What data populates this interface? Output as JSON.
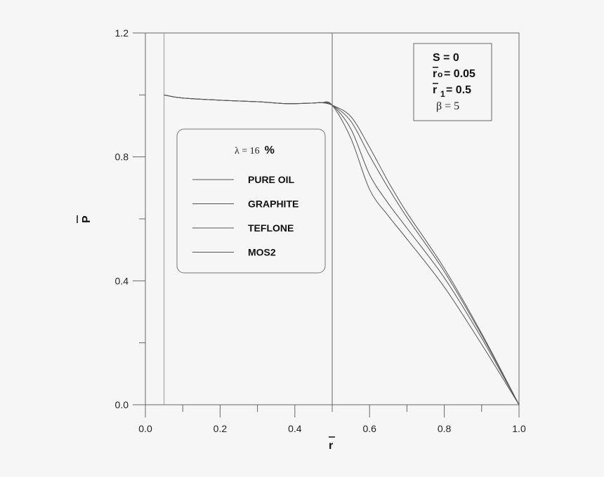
{
  "chart_data": {
    "type": "line",
    "title": "",
    "xlabel": "r̄",
    "ylabel": "P̄",
    "xlim": [
      0.0,
      1.0
    ],
    "ylim": [
      0.0,
      1.2
    ],
    "x_ticks": [
      "0.0",
      "0.2",
      "0.4",
      "0.6",
      "0.8",
      "1.0"
    ],
    "y_ticks": [
      "0.0",
      "0.4",
      "0.8",
      "1.2"
    ],
    "x_minor_step": 0.1,
    "y_minor_step": 0.2,
    "grid": false,
    "reference_lines_x": [
      0.05,
      0.5
    ],
    "legend": {
      "header": "λ = 16 %",
      "position": "left-middle",
      "entries": [
        "PURE OIL",
        "GRAPHITE",
        "TEFLONE",
        "MOS2"
      ]
    },
    "annotation": {
      "position": "top-right",
      "lines": [
        "S = 0",
        "r̄o= 0.05",
        "r̄ 1= 0.5",
        "β = 5"
      ]
    },
    "x": [
      0.05,
      0.1,
      0.2,
      0.3,
      0.38,
      0.45,
      0.47,
      0.5,
      0.55,
      0.6,
      0.65,
      0.7,
      0.8,
      0.9,
      1.0
    ],
    "series": [
      {
        "name": "PURE OIL",
        "values": [
          1.0,
          0.99,
          0.983,
          0.978,
          0.972,
          0.974,
          0.975,
          0.967,
          0.93,
          0.831,
          0.72,
          0.62,
          0.44,
          0.23,
          0.0
        ]
      },
      {
        "name": "GRAPHITE",
        "values": [
          1.0,
          0.99,
          0.983,
          0.978,
          0.972,
          0.974,
          0.975,
          0.967,
          0.915,
          0.804,
          0.7,
          0.605,
          0.43,
          0.225,
          0.0
        ]
      },
      {
        "name": "TEFLONE",
        "values": [
          1.0,
          0.99,
          0.983,
          0.978,
          0.972,
          0.974,
          0.975,
          0.967,
          0.89,
          0.743,
          0.65,
          0.57,
          0.41,
          0.215,
          0.0
        ]
      },
      {
        "name": "MOS2",
        "values": [
          1.0,
          0.99,
          0.983,
          0.978,
          0.972,
          0.974,
          0.975,
          0.967,
          0.86,
          0.695,
          0.61,
          0.535,
          0.38,
          0.195,
          0.0
        ]
      }
    ]
  },
  "labels": {
    "xlabel": "r",
    "ylabel": "P",
    "legend_header_lambda": "λ = 16",
    "legend_header_pct": "%",
    "annot_s": "S = 0",
    "annot_r0_r": "r",
    "annot_r0_sub": "o",
    "annot_r0_val": "= 0.05",
    "annot_r1_r": "r",
    "annot_r1_sub": "1",
    "annot_r1_val": "= 0.5",
    "annot_beta": "β = 5"
  },
  "colors": {
    "background": "#f6f6f6",
    "axis": "#666666",
    "curve": "#555555",
    "text": "#111111"
  }
}
